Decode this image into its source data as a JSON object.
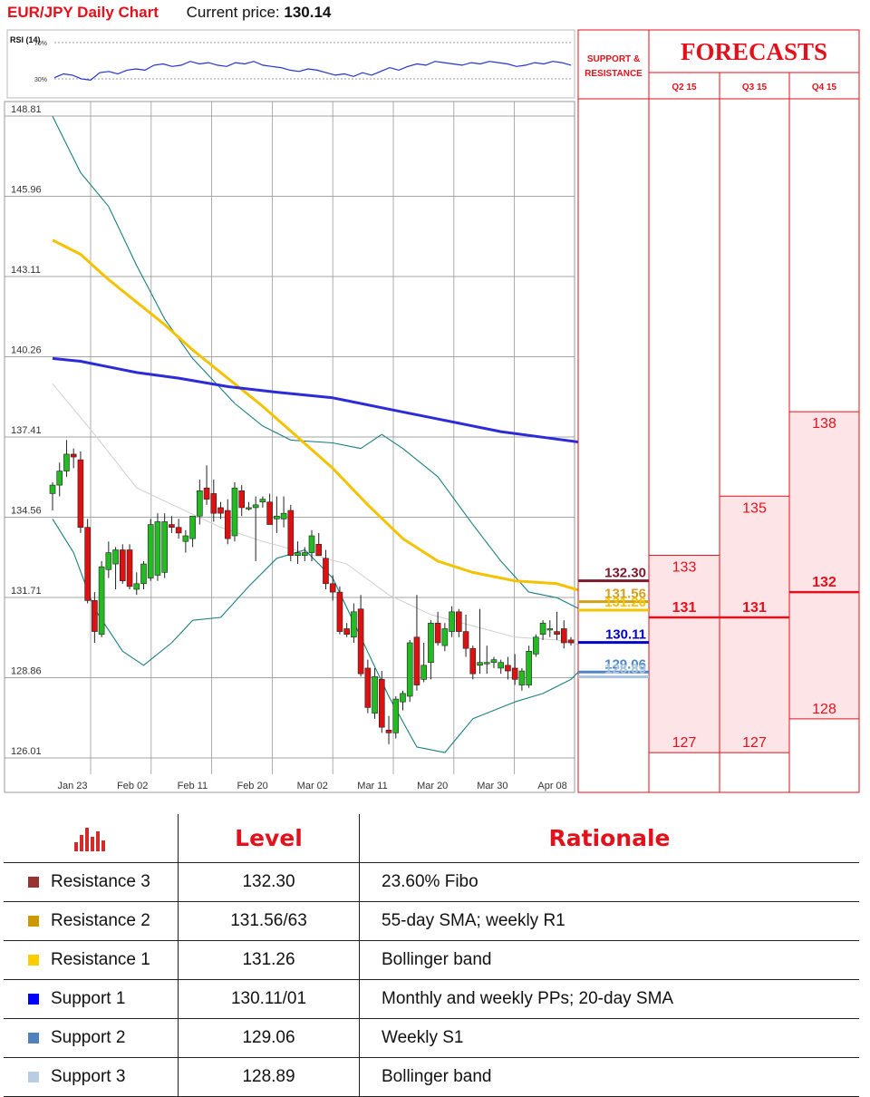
{
  "header": {
    "title": "EUR/JPY Daily Chart",
    "current_price_label": "Current price:",
    "current_price": "130.14"
  },
  "rsi": {
    "label": "RSI (14)",
    "levels": [
      "70%",
      "30%"
    ],
    "values": [
      34,
      37,
      36,
      33,
      32,
      38,
      39,
      37,
      40,
      41,
      40,
      44,
      45,
      43,
      44,
      47,
      45,
      46,
      44,
      43,
      46,
      45,
      47,
      44,
      43,
      42,
      40,
      39,
      41,
      40,
      38,
      36,
      37,
      35,
      38,
      36,
      39,
      42,
      40,
      43,
      45,
      44,
      47,
      46,
      45,
      44,
      46,
      45,
      47,
      46,
      45,
      43,
      44,
      46,
      45,
      47,
      46,
      44
    ]
  },
  "panel": {
    "sr_header": "SUPPORT & RESISTANCE",
    "forecasts_header": "FORECASTS",
    "quarters": [
      "Q2 15",
      "Q3 15",
      "Q4 15"
    ]
  },
  "colors": {
    "accent": "#e3111b",
    "r3": "#7b1a2a",
    "r2": "#d4a017",
    "r1": "#f0c400",
    "s1": "#0000cc",
    "s2": "#4f86c6",
    "s3": "#a9c4e0",
    "sma200": "#2b2bd9",
    "sma55": "#f5c200",
    "bollinger": "#1a7f7f",
    "candle_up": "#22bb22",
    "candle_down": "#dd1111",
    "forecast_fill": "#fde4e6"
  },
  "chart_data": {
    "type": "candlestick",
    "title": "EUR/JPY Daily Chart",
    "yticks": [
      "148.81",
      "145.96",
      "143.11",
      "140.26",
      "137.41",
      "134.56",
      "131.71",
      "128.86",
      "126.01"
    ],
    "ylim": [
      126.01,
      148.81
    ],
    "xticks": [
      "Jan 23",
      "Feb 02",
      "Feb 11",
      "Feb 20",
      "Mar 02",
      "Mar 11",
      "Mar 20",
      "Mar 30",
      "Apr 08"
    ],
    "candles": [
      {
        "o": 135.4,
        "h": 135.8,
        "l": 134.8,
        "c": 135.7
      },
      {
        "o": 135.7,
        "h": 136.5,
        "l": 135.3,
        "c": 136.2
      },
      {
        "o": 136.2,
        "h": 137.3,
        "l": 136.0,
        "c": 136.8
      },
      {
        "o": 136.8,
        "h": 137.0,
        "l": 136.3,
        "c": 136.7
      },
      {
        "o": 136.6,
        "h": 136.9,
        "l": 134.0,
        "c": 134.2
      },
      {
        "o": 134.2,
        "h": 134.5,
        "l": 131.5,
        "c": 131.6
      },
      {
        "o": 131.6,
        "h": 131.9,
        "l": 130.1,
        "c": 130.5
      },
      {
        "o": 130.4,
        "h": 133.0,
        "l": 130.3,
        "c": 132.8
      },
      {
        "o": 132.7,
        "h": 133.7,
        "l": 132.4,
        "c": 133.3
      },
      {
        "o": 132.9,
        "h": 133.5,
        "l": 132.0,
        "c": 133.4
      },
      {
        "o": 133.4,
        "h": 133.6,
        "l": 132.2,
        "c": 132.3
      },
      {
        "o": 133.4,
        "h": 133.6,
        "l": 132.0,
        "c": 132.1
      },
      {
        "o": 132.0,
        "h": 132.6,
        "l": 131.8,
        "c": 132.2
      },
      {
        "o": 132.2,
        "h": 133.0,
        "l": 132.0,
        "c": 132.9
      },
      {
        "o": 132.4,
        "h": 134.5,
        "l": 132.3,
        "c": 134.3
      },
      {
        "o": 132.5,
        "h": 134.7,
        "l": 132.3,
        "c": 134.4
      },
      {
        "o": 132.6,
        "h": 134.7,
        "l": 132.4,
        "c": 134.4
      },
      {
        "o": 134.3,
        "h": 134.6,
        "l": 134.0,
        "c": 134.2
      },
      {
        "o": 134.2,
        "h": 134.5,
        "l": 133.8,
        "c": 134.0
      },
      {
        "o": 133.7,
        "h": 134.1,
        "l": 133.3,
        "c": 133.9
      },
      {
        "o": 133.8,
        "h": 134.4,
        "l": 133.5,
        "c": 134.6
      },
      {
        "o": 134.6,
        "h": 135.9,
        "l": 134.3,
        "c": 135.5
      },
      {
        "o": 135.6,
        "h": 136.4,
        "l": 135.0,
        "c": 135.2
      },
      {
        "o": 135.4,
        "h": 135.9,
        "l": 134.4,
        "c": 134.7
      },
      {
        "o": 134.9,
        "h": 135.1,
        "l": 134.5,
        "c": 134.7
      },
      {
        "o": 134.8,
        "h": 135.2,
        "l": 133.6,
        "c": 133.8
      },
      {
        "o": 133.9,
        "h": 135.8,
        "l": 133.7,
        "c": 135.6
      },
      {
        "o": 135.5,
        "h": 135.7,
        "l": 134.6,
        "c": 134.9
      },
      {
        "o": 134.9,
        "h": 135.1,
        "l": 134.8,
        "c": 134.9
      },
      {
        "o": 134.9,
        "h": 135.3,
        "l": 133.0,
        "c": 135.0
      },
      {
        "o": 135.1,
        "h": 135.3,
        "l": 134.9,
        "c": 135.2
      },
      {
        "o": 135.1,
        "h": 135.4,
        "l": 134.4,
        "c": 134.3
      },
      {
        "o": 134.5,
        "h": 135.3,
        "l": 134.0,
        "c": 134.6
      },
      {
        "o": 134.5,
        "h": 135.3,
        "l": 134.2,
        "c": 134.7
      },
      {
        "o": 134.8,
        "h": 135.0,
        "l": 133.0,
        "c": 133.2
      },
      {
        "o": 133.2,
        "h": 133.7,
        "l": 132.9,
        "c": 133.3
      },
      {
        "o": 133.2,
        "h": 133.5,
        "l": 133.0,
        "c": 133.3
      },
      {
        "o": 133.3,
        "h": 134.1,
        "l": 133.0,
        "c": 133.9
      },
      {
        "o": 133.6,
        "h": 134.0,
        "l": 133.3,
        "c": 133.2
      },
      {
        "o": 133.1,
        "h": 133.4,
        "l": 132.0,
        "c": 132.2
      },
      {
        "o": 132.2,
        "h": 132.5,
        "l": 131.6,
        "c": 131.9
      },
      {
        "o": 131.9,
        "h": 132.1,
        "l": 130.4,
        "c": 130.5
      },
      {
        "o": 130.6,
        "h": 130.8,
        "l": 130.3,
        "c": 130.4
      },
      {
        "o": 130.3,
        "h": 131.5,
        "l": 130.1,
        "c": 131.2
      },
      {
        "o": 131.3,
        "h": 131.8,
        "l": 128.9,
        "c": 129.0
      },
      {
        "o": 129.2,
        "h": 129.5,
        "l": 127.6,
        "c": 127.8
      },
      {
        "o": 127.6,
        "h": 129.2,
        "l": 127.4,
        "c": 128.9
      },
      {
        "o": 128.8,
        "h": 129.1,
        "l": 126.9,
        "c": 127.1
      },
      {
        "o": 127.0,
        "h": 127.5,
        "l": 126.5,
        "c": 126.9
      },
      {
        "o": 126.9,
        "h": 128.2,
        "l": 126.7,
        "c": 128.1
      },
      {
        "o": 128.0,
        "h": 128.4,
        "l": 127.7,
        "c": 128.3
      },
      {
        "o": 128.2,
        "h": 130.2,
        "l": 128.0,
        "c": 130.1
      },
      {
        "o": 130.3,
        "h": 131.8,
        "l": 128.4,
        "c": 128.6
      },
      {
        "o": 128.8,
        "h": 130.1,
        "l": 128.7,
        "c": 129.3
      },
      {
        "o": 129.4,
        "h": 130.9,
        "l": 128.8,
        "c": 130.8
      },
      {
        "o": 130.8,
        "h": 131.2,
        "l": 130.0,
        "c": 130.1
      },
      {
        "o": 130.0,
        "h": 130.8,
        "l": 129.8,
        "c": 130.6
      },
      {
        "o": 130.5,
        "h": 131.4,
        "l": 130.3,
        "c": 131.2
      },
      {
        "o": 131.2,
        "h": 131.3,
        "l": 130.3,
        "c": 130.5
      },
      {
        "o": 130.5,
        "h": 131.1,
        "l": 129.6,
        "c": 129.9
      },
      {
        "o": 129.9,
        "h": 130.0,
        "l": 128.8,
        "c": 129.0
      },
      {
        "o": 129.3,
        "h": 131.3,
        "l": 129.0,
        "c": 129.4
      },
      {
        "o": 129.4,
        "h": 130.0,
        "l": 129.0,
        "c": 129.4
      },
      {
        "o": 129.4,
        "h": 129.6,
        "l": 129.2,
        "c": 129.5
      },
      {
        "o": 129.2,
        "h": 129.5,
        "l": 129.0,
        "c": 129.4
      },
      {
        "o": 129.3,
        "h": 129.6,
        "l": 128.8,
        "c": 129.1
      },
      {
        "o": 129.2,
        "h": 129.7,
        "l": 128.6,
        "c": 128.8
      },
      {
        "o": 128.6,
        "h": 129.2,
        "l": 128.4,
        "c": 129.1
      },
      {
        "o": 128.6,
        "h": 130.0,
        "l": 128.5,
        "c": 129.8
      },
      {
        "o": 129.7,
        "h": 130.4,
        "l": 129.6,
        "c": 130.3
      },
      {
        "o": 130.4,
        "h": 130.9,
        "l": 130.2,
        "c": 130.8
      },
      {
        "o": 130.6,
        "h": 130.9,
        "l": 130.3,
        "c": 130.6
      },
      {
        "o": 130.5,
        "h": 131.2,
        "l": 130.2,
        "c": 130.4
      },
      {
        "o": 130.6,
        "h": 130.9,
        "l": 129.9,
        "c": 130.1
      },
      {
        "o": 130.2,
        "h": 130.3,
        "l": 130.0,
        "c": 130.1
      }
    ],
    "sma200": [
      [
        0,
        140.2
      ],
      [
        4,
        140.1
      ],
      [
        8,
        139.9
      ],
      [
        12,
        139.7
      ],
      [
        18,
        139.5
      ],
      [
        25,
        139.2
      ],
      [
        32,
        139.0
      ],
      [
        40,
        138.8
      ],
      [
        48,
        138.4
      ],
      [
        56,
        138.0
      ],
      [
        64,
        137.6
      ],
      [
        70,
        137.4
      ],
      [
        76,
        137.2
      ]
    ],
    "sma55": [
      [
        0,
        144.4
      ],
      [
        4,
        143.9
      ],
      [
        8,
        143.0
      ],
      [
        12,
        142.2
      ],
      [
        16,
        141.4
      ],
      [
        20,
        140.5
      ],
      [
        25,
        139.5
      ],
      [
        30,
        138.5
      ],
      [
        35,
        137.4
      ],
      [
        40,
        136.3
      ],
      [
        45,
        135.0
      ],
      [
        50,
        133.8
      ],
      [
        55,
        133.0
      ],
      [
        60,
        132.6
      ],
      [
        66,
        132.3
      ],
      [
        72,
        132.2
      ],
      [
        76,
        131.9
      ]
    ],
    "bollinger_upper": [
      [
        0,
        148.8
      ],
      [
        4,
        146.8
      ],
      [
        8,
        145.6
      ],
      [
        12,
        143.5
      ],
      [
        16,
        141.6
      ],
      [
        20,
        140.2
      ],
      [
        26,
        138.6
      ],
      [
        30,
        137.8
      ],
      [
        34,
        137.3
      ],
      [
        40,
        137.2
      ],
      [
        44,
        137.0
      ],
      [
        47,
        137.5
      ],
      [
        50,
        137.0
      ],
      [
        55,
        136.0
      ],
      [
        60,
        134.3
      ],
      [
        64,
        133.0
      ],
      [
        68,
        131.9
      ],
      [
        72,
        131.7
      ],
      [
        76,
        131.2
      ]
    ],
    "bollinger_lower": [
      [
        0,
        134.5
      ],
      [
        3,
        133.3
      ],
      [
        6,
        131.3
      ],
      [
        10,
        129.8
      ],
      [
        13,
        129.3
      ],
      [
        17,
        130.1
      ],
      [
        20,
        130.9
      ],
      [
        24,
        131.0
      ],
      [
        28,
        132.1
      ],
      [
        32,
        133.1
      ],
      [
        36,
        133.4
      ],
      [
        40,
        132.4
      ],
      [
        44,
        130.3
      ],
      [
        48,
        128.2
      ],
      [
        52,
        126.4
      ],
      [
        56,
        126.2
      ],
      [
        60,
        127.4
      ],
      [
        66,
        128.0
      ],
      [
        70,
        128.3
      ],
      [
        74,
        128.8
      ],
      [
        76,
        129.3
      ]
    ],
    "mid_band": [
      [
        0,
        139.3
      ],
      [
        6,
        137.5
      ],
      [
        12,
        135.6
      ],
      [
        18,
        134.9
      ],
      [
        24,
        134.2
      ],
      [
        30,
        133.7
      ],
      [
        36,
        133.3
      ],
      [
        42,
        132.9
      ],
      [
        48,
        131.8
      ],
      [
        54,
        131.1
      ],
      [
        60,
        130.7
      ],
      [
        66,
        130.3
      ],
      [
        72,
        130.2
      ],
      [
        76,
        130.0
      ]
    ],
    "levels": [
      {
        "key": "r3",
        "label": "132.30",
        "value": 132.3
      },
      {
        "key": "r2",
        "label": "131.56",
        "value": 131.56
      },
      {
        "key": "r1",
        "label": "131.26",
        "value": 131.26
      },
      {
        "key": "s1",
        "label": "130.11",
        "value": 130.11
      },
      {
        "key": "s2",
        "label": "129.06",
        "value": 129.06
      },
      {
        "key": "s3",
        "label": "128.89",
        "value": 128.89
      }
    ],
    "forecasts": [
      {
        "quarter": "Q2 15",
        "high": "133",
        "mid": "131",
        "low": "127",
        "high_v": 132.5,
        "mid_v": 131.0,
        "low_v": 127.1
      },
      {
        "quarter": "Q3 15",
        "high": "135",
        "mid": "131",
        "low": "127",
        "high_v": 134.6,
        "mid_v": 131.0,
        "low_v": 127.1
      },
      {
        "quarter": "Q4 15",
        "high": "138",
        "mid": "132",
        "low": "128",
        "high_v": 137.6,
        "mid_v": 131.9,
        "low_v": 128.3
      }
    ]
  },
  "table": {
    "headers": {
      "level": "Level",
      "rationale": "Rationale"
    },
    "rows": [
      {
        "name": "Resistance 3",
        "level": "132.30",
        "rationale": "23.60% Fibo",
        "color": "#993333"
      },
      {
        "name": "Resistance 2",
        "level": "131.56/63",
        "rationale": "55-day SMA; weekly R1",
        "color": "#cc9900"
      },
      {
        "name": "Resistance 1",
        "level": "131.26",
        "rationale": "Bollinger band",
        "color": "#ffcc00"
      },
      {
        "name": "Support 1",
        "level": "130.11/01",
        "rationale": "Monthly and weekly PPs; 20-day SMA",
        "color": "#0000ff"
      },
      {
        "name": "Support 2",
        "level": "129.06",
        "rationale": "Weekly S1",
        "color": "#4f81bd"
      },
      {
        "name": "Support 3",
        "level": "128.89",
        "rationale": "Bollinger band",
        "color": "#b8cce4"
      }
    ]
  }
}
